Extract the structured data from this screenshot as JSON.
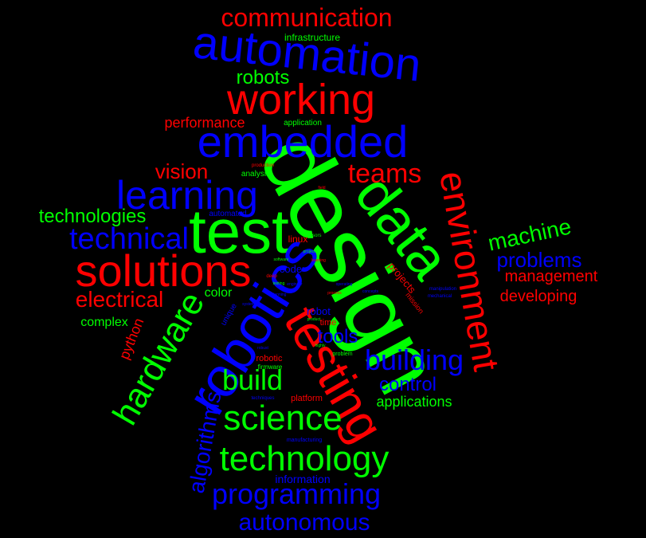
{
  "colors": {
    "background": "#000000",
    "red": "#ff0000",
    "green": "#00ff00",
    "blue": "#0000ff"
  },
  "words": [
    {
      "text": "design",
      "color": "green"
    },
    {
      "text": "test",
      "color": "green"
    },
    {
      "text": "data",
      "color": "green"
    },
    {
      "text": "robotics",
      "color": "blue"
    },
    {
      "text": "testing",
      "color": "red"
    },
    {
      "text": "embedded",
      "color": "blue"
    },
    {
      "text": "automation",
      "color": "blue"
    },
    {
      "text": "working",
      "color": "red"
    },
    {
      "text": "solutions",
      "color": "red"
    },
    {
      "text": "environment",
      "color": "red"
    },
    {
      "text": "learning",
      "color": "blue"
    },
    {
      "text": "technology",
      "color": "green"
    },
    {
      "text": "science",
      "color": "green"
    },
    {
      "text": "hardware",
      "color": "green"
    },
    {
      "text": "technical",
      "color": "blue"
    },
    {
      "text": "communication",
      "color": "red"
    },
    {
      "text": "programming",
      "color": "blue"
    },
    {
      "text": "building",
      "color": "blue"
    },
    {
      "text": "build",
      "color": "green"
    },
    {
      "text": "teams",
      "color": "red"
    },
    {
      "text": "autonomous",
      "color": "blue"
    },
    {
      "text": "machine",
      "color": "green"
    },
    {
      "text": "algorithms",
      "color": "blue"
    },
    {
      "text": "electrical",
      "color": "red"
    },
    {
      "text": "problems",
      "color": "blue"
    },
    {
      "text": "technologies",
      "color": "green"
    },
    {
      "text": "control",
      "color": "blue"
    },
    {
      "text": "tools",
      "color": "blue"
    },
    {
      "text": "vision",
      "color": "red"
    },
    {
      "text": "robots",
      "color": "green"
    },
    {
      "text": "management",
      "color": "red"
    },
    {
      "text": "developing",
      "color": "red"
    },
    {
      "text": "python",
      "color": "red"
    },
    {
      "text": "applications",
      "color": "green"
    },
    {
      "text": "performance",
      "color": "red"
    },
    {
      "text": "complex",
      "color": "green"
    },
    {
      "text": "color",
      "color": "green"
    },
    {
      "text": "infrastructure",
      "color": "green"
    },
    {
      "text": "information",
      "color": "blue"
    },
    {
      "text": "projects",
      "color": "red"
    },
    {
      "text": "robot",
      "color": "blue"
    },
    {
      "text": "code",
      "color": "blue"
    },
    {
      "text": "linux",
      "color": "red"
    },
    {
      "text": "application",
      "color": "green"
    },
    {
      "text": "analysis",
      "color": "green"
    },
    {
      "text": "robotic",
      "color": "red"
    },
    {
      "text": "mission",
      "color": "red"
    },
    {
      "text": "automated",
      "color": "blue"
    },
    {
      "text": "platform",
      "color": "red"
    },
    {
      "text": "time",
      "color": "red"
    },
    {
      "text": "firmware",
      "color": "green"
    },
    {
      "text": "unique",
      "color": "blue"
    },
    {
      "text": "problem",
      "color": "green"
    },
    {
      "text": "production",
      "color": "red"
    },
    {
      "text": "manufacturing",
      "color": "blue"
    },
    {
      "text": "techniques",
      "color": "blue"
    },
    {
      "text": "mechanical",
      "color": "blue"
    },
    {
      "text": "manipulation",
      "color": "blue"
    },
    {
      "text": "sensors",
      "color": "green"
    },
    {
      "text": "project",
      "color": "green"
    },
    {
      "text": "deep",
      "color": "red"
    },
    {
      "text": "highly",
      "color": "green"
    },
    {
      "text": "engineer",
      "color": "blue"
    },
    {
      "text": "concepts",
      "color": "blue"
    },
    {
      "text": "testing",
      "color": "green"
    },
    {
      "text": "process",
      "color": "red"
    },
    {
      "text": "operating",
      "color": "blue"
    },
    {
      "text": "software",
      "color": "green"
    },
    {
      "text": "planning",
      "color": "blue"
    },
    {
      "text": "product",
      "color": "green"
    },
    {
      "text": "learning",
      "color": "red"
    },
    {
      "text": "robust",
      "color": "blue"
    },
    {
      "text": "system",
      "color": "blue"
    },
    {
      "text": "field",
      "color": "red"
    }
  ]
}
